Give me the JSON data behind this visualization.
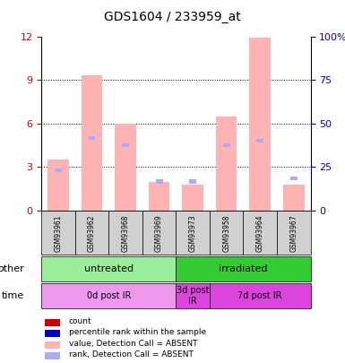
{
  "title": "GDS1604 / 233959_at",
  "samples": [
    "GSM93961",
    "GSM93962",
    "GSM93968",
    "GSM93969",
    "GSM93973",
    "GSM93958",
    "GSM93964",
    "GSM93967"
  ],
  "bar_values_pink": [
    3.5,
    9.3,
    6.0,
    2.0,
    1.8,
    6.5,
    11.9,
    1.8
  ],
  "rank_values_blue": [
    2.8,
    5.0,
    4.5,
    2.0,
    2.0,
    4.5,
    4.8,
    2.2
  ],
  "ylim": [
    0,
    12
  ],
  "ylim_right": [
    0,
    100
  ],
  "yticks_left": [
    0,
    3,
    6,
    9,
    12
  ],
  "yticks_right": [
    0,
    25,
    50,
    75,
    100
  ],
  "ytick_labels_right": [
    "0",
    "25",
    "50",
    "75",
    "100%"
  ],
  "bar_color_pink": "#ffb3b3",
  "rank_color_blue": "#aaaaff",
  "grid_color": "#000000",
  "other_row": [
    {
      "label": "untreated",
      "start": 0,
      "end": 4,
      "color": "#99ee99"
    },
    {
      "label": "irradiated",
      "start": 4,
      "end": 8,
      "color": "#33cc33"
    }
  ],
  "time_row": [
    {
      "label": "0d post IR",
      "start": 0,
      "end": 4,
      "color": "#ee99ee"
    },
    {
      "label": "3d post\nIR",
      "start": 4,
      "end": 5,
      "color": "#dd44dd"
    },
    {
      "label": "7d post IR",
      "start": 5,
      "end": 8,
      "color": "#dd44dd"
    }
  ],
  "legend_items": [
    {
      "color": "#cc0000",
      "label": "count"
    },
    {
      "color": "#0000cc",
      "label": "percentile rank within the sample"
    },
    {
      "color": "#ffb3b3",
      "label": "value, Detection Call = ABSENT"
    },
    {
      "color": "#aaaaff",
      "label": "rank, Detection Call = ABSENT"
    }
  ],
  "ylabel_left_color": "#cc0000",
  "ylabel_right_color": "#0000cc"
}
